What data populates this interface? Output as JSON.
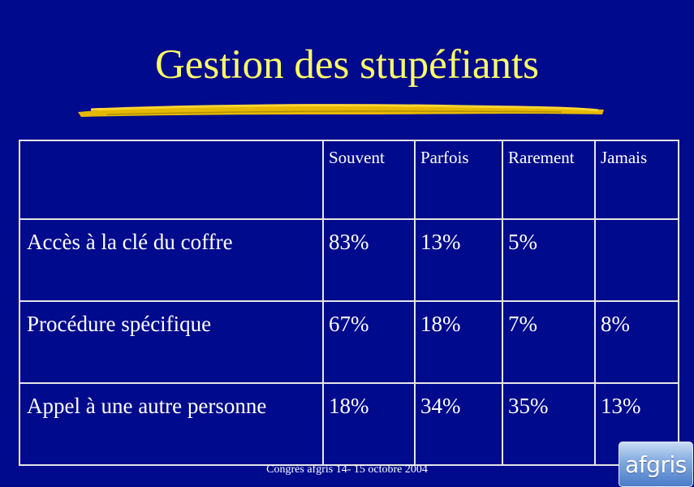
{
  "slide": {
    "title": "Gestion des stupéfiants",
    "footer": "Congrès afgris 14- 15 octobre 2004",
    "logo_text": "afgris"
  },
  "colors": {
    "background": "#000a8c",
    "title": "#ffff66",
    "underline_stroke": "#e6b800",
    "grid_lines": "#e6e6e6",
    "text": "#ffffff"
  },
  "table": {
    "columns": [
      "",
      "Souvent",
      "Parfois",
      "Rarement",
      "Jamais"
    ],
    "rows": [
      {
        "label": "Accès à la clé du coffre",
        "values": [
          "83%",
          "13%",
          "5%",
          ""
        ]
      },
      {
        "label": "Procédure spécifique",
        "values": [
          "67%",
          "18%",
          "7%",
          "8%"
        ]
      },
      {
        "label": "Appel à une autre personne",
        "values": [
          "18%",
          "34%",
          "35%",
          "13%"
        ]
      }
    ]
  }
}
